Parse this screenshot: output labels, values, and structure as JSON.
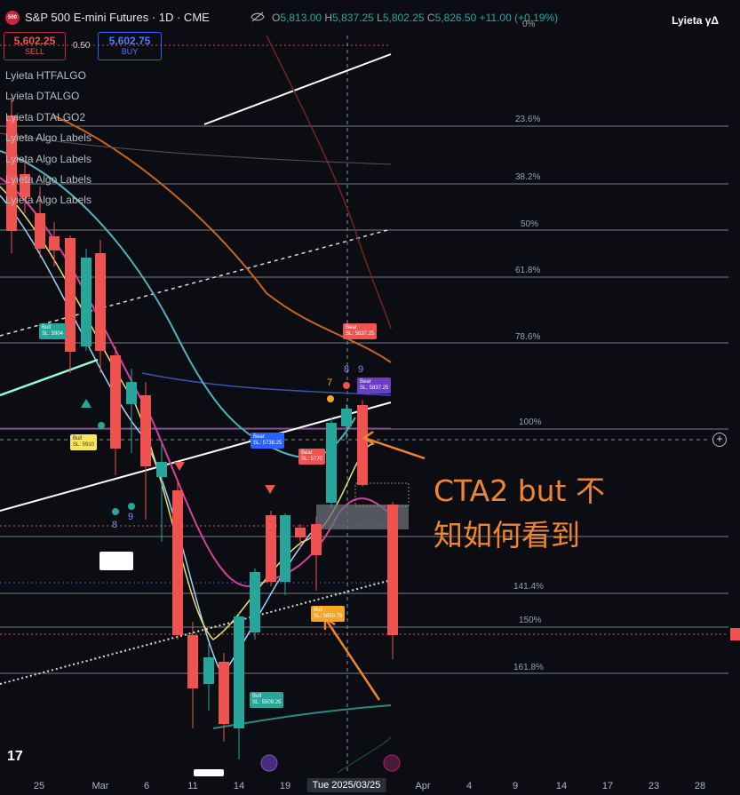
{
  "header": {
    "symbol_badge": "500",
    "title": "S&P 500 E-mini Futures · 1D · CME",
    "ohlc": {
      "o_label": "O",
      "o": "5,813.00",
      "h_label": "H",
      "h": "5,837.25",
      "l_label": "L",
      "l": "5,802.25",
      "c_label": "C",
      "c": "5,826.50",
      "change": "+11.00 (+0.19%)"
    },
    "brand": "Lyieta γΔ"
  },
  "trade": {
    "sell_price": "5,602.25",
    "sell_label": "SELL",
    "spread": "0.50",
    "buy_price": "5,602.75",
    "buy_label": "BUY"
  },
  "indicators": [
    "Lyieta HTFALGO",
    "Lyieta DTALGO",
    "Lyieta DTALGO2",
    "Lyieta Algo Labels",
    "Lyieta Algo Labels",
    "Lyieta Algo Labels",
    "Lyieta Algo Labels"
  ],
  "fib_levels": [
    "0%",
    "23.6%",
    "38.2%",
    "50%",
    "61.8%",
    "78.6%",
    "100%",
    "141.4%",
    "150%",
    "161.8%"
  ],
  "x_ticks": [
    "25",
    "Mar",
    "6",
    "11",
    "14",
    "19",
    "Tue 2025/03/25",
    "Apr",
    "4",
    "9",
    "14",
    "17",
    "23",
    "28"
  ],
  "chart_labels": {
    "bull1": {
      "title": "Bull",
      "sl": "SL: 5904"
    },
    "bull2": {
      "title": "Bull",
      "sl": "SL: 5650.75"
    },
    "bull3": {
      "title": "Bull",
      "sl": "SL: 5509.25"
    },
    "bear1": {
      "title": "Bear",
      "sl": "SL: 5837.25"
    },
    "bear2": {
      "title": "Bear",
      "sl": "SL: 5837.25"
    },
    "bear3": {
      "title": "Bear",
      "sl": "SL: 5770"
    },
    "bear4": {
      "title": "Bear",
      "sl": "SL: 5738.25"
    },
    "yellow": {
      "title": "Bull",
      "sl": "SL: 5910"
    },
    "num_7": "7",
    "num_8": "8",
    "num_9": "9",
    "num_8b": "8",
    "num_9b": "9"
  },
  "annotation": {
    "line1": "CTA2 but 不",
    "line2": "知如何看到"
  },
  "colors": {
    "bg": "#0b0d12",
    "up": "#26a69a",
    "down": "#ef5350",
    "annotation": "#f0852d",
    "fib_line": "#787b86"
  }
}
